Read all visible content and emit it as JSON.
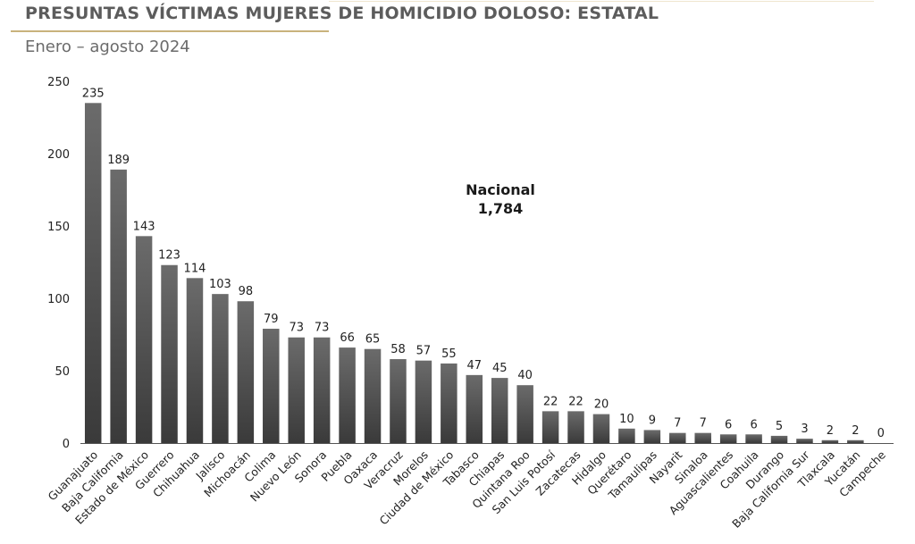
{
  "header": {
    "title": "PRESUNTAS VÍCTIMAS MUJERES DE HOMICIDIO DOLOSO: ESTATAL",
    "subtitle": "Enero – agosto 2024"
  },
  "annotation": {
    "label": "Nacional",
    "value": "1,784"
  },
  "colors": {
    "bar_top": "#6b6b6b",
    "bar_bottom": "#3a3a3a",
    "axis": "#555555",
    "text": "#222222",
    "accent_rule": "#c9b27c"
  },
  "chart_data": {
    "type": "bar",
    "title": "PRESUNTAS VÍCTIMAS MUJERES DE HOMICIDIO DOLOSO: ESTATAL",
    "subtitle": "Enero – agosto 2024",
    "xlabel": "",
    "ylabel": "",
    "ylim": [
      0,
      250
    ],
    "yticks": [
      0,
      50,
      100,
      150,
      200,
      250
    ],
    "grid": false,
    "categories": [
      "Guanajuato",
      "Baja California",
      "Estado de México",
      "Guerrero",
      "Chihuahua",
      "Jalisco",
      "Michoacán",
      "Colima",
      "Nuevo León",
      "Sonora",
      "Puebla",
      "Oaxaca",
      "Veracruz",
      "Morelos",
      "Ciudad de México",
      "Tabasco",
      "Chiapas",
      "Quintana Roo",
      "San Luis Potosí",
      "Zacatecas",
      "Hidalgo",
      "Querétaro",
      "Tamaulipas",
      "Nayarit",
      "Sinaloa",
      "Aguascalientes",
      "Coahuila",
      "Durango",
      "Baja California Sur",
      "Tlaxcala",
      "Yucatán",
      "Campeche"
    ],
    "values": [
      235,
      189,
      143,
      123,
      114,
      103,
      98,
      79,
      73,
      73,
      66,
      65,
      58,
      57,
      55,
      47,
      45,
      40,
      22,
      22,
      20,
      10,
      9,
      7,
      7,
      6,
      6,
      5,
      3,
      2,
      2,
      0
    ],
    "data_labels": true
  }
}
